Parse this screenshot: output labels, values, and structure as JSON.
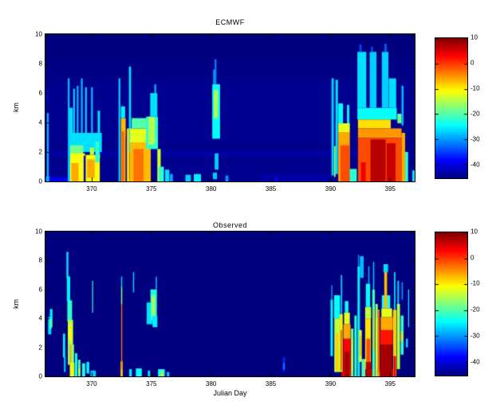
{
  "figure_title": "",
  "accent_colors": {
    "axis": "#000000",
    "background": "#ffffff",
    "plot_min_blue": "#000080"
  },
  "chart_data": [
    {
      "type": "heatmap",
      "title": "ECMWF",
      "xlabel": "",
      "ylabel": "km",
      "xlim": [
        366.13,
        397.05
      ],
      "ylim": [
        0,
        10
      ],
      "xticks": [
        370,
        375,
        380,
        385,
        390,
        395
      ],
      "yticks": [
        0,
        2,
        4,
        6,
        8,
        10
      ],
      "colormap": "jet",
      "clim": [
        -45,
        10
      ],
      "colorbar_ticks": [
        10,
        0,
        -10,
        -20,
        -30,
        -40
      ],
      "background_value": -45,
      "cells_format": [
        "day_start",
        "day_end",
        "km_bottom",
        "km_top",
        "value_dBZ"
      ],
      "cells": [
        [
          366.13,
          397.05,
          0,
          8.3,
          -44.6
        ],
        [
          366.13,
          397.05,
          0,
          6.8,
          -44.2
        ],
        [
          366.13,
          397.05,
          1.78,
          2.02,
          -42.8
        ],
        [
          384.0,
          390.1,
          0,
          0.5,
          -43.0
        ],
        [
          366.13,
          368.05,
          0,
          0.3,
          -39
        ],
        [
          366.17,
          366.45,
          0,
          0.35,
          -30
        ],
        [
          366.25,
          366.4,
          0,
          4.65,
          -28
        ],
        [
          366.25,
          366.4,
          5.5,
          6.2,
          -40
        ],
        [
          385.35,
          385.55,
          0,
          0.3,
          -38
        ],
        [
          368.0,
          368.15,
          0,
          7.0,
          -28
        ],
        [
          368.12,
          368.42,
          0,
          5.0,
          -26
        ],
        [
          368.45,
          368.6,
          2.2,
          6.3,
          -27
        ],
        [
          368.75,
          368.9,
          2.5,
          6.5,
          -28
        ],
        [
          369.1,
          369.25,
          3.0,
          7.0,
          -28
        ],
        [
          369.45,
          369.6,
          2.5,
          6.4,
          -27
        ],
        [
          369.95,
          370.1,
          3.3,
          6.4,
          -28
        ],
        [
          370.5,
          370.7,
          1.6,
          4.8,
          -26
        ],
        [
          368.15,
          370.85,
          2.0,
          3.3,
          -26
        ],
        [
          368.2,
          369.3,
          1.85,
          2.45,
          -18
        ],
        [
          368.2,
          369.45,
          0,
          1.9,
          -11
        ],
        [
          368.3,
          368.9,
          0,
          1.25,
          -6
        ],
        [
          369.33,
          369.5,
          0,
          1.75,
          -40
        ],
        [
          369.5,
          370.68,
          0,
          1.8,
          -11
        ],
        [
          369.62,
          370.25,
          0.25,
          1.5,
          -6
        ],
        [
          369.85,
          370.2,
          1.8,
          2.3,
          -14
        ],
        [
          370.3,
          370.62,
          1.3,
          2.7,
          -22
        ],
        [
          372.25,
          372.4,
          0,
          7.0,
          -27
        ],
        [
          372.45,
          372.85,
          0,
          4.3,
          -7
        ],
        [
          372.52,
          372.72,
          0,
          3.4,
          -2
        ],
        [
          372.45,
          372.8,
          4.3,
          5.1,
          -25
        ],
        [
          372.85,
          372.95,
          0,
          3.0,
          -40
        ],
        [
          372.95,
          373.18,
          0,
          3.6,
          -9
        ],
        [
          373.12,
          373.3,
          2.0,
          7.8,
          -26
        ],
        [
          373.2,
          374.95,
          0,
          2.65,
          -7
        ],
        [
          373.5,
          374.35,
          0,
          2.2,
          -3
        ],
        [
          373.2,
          374.95,
          2.65,
          3.6,
          -12
        ],
        [
          373.35,
          374.8,
          3.6,
          4.3,
          -20
        ],
        [
          374.55,
          375.55,
          2.2,
          4.4,
          -22
        ],
        [
          374.75,
          375.3,
          2.5,
          4.4,
          -15
        ],
        [
          374.9,
          375.5,
          4.4,
          6.0,
          -26
        ],
        [
          375.25,
          375.4,
          6.0,
          6.6,
          -28
        ],
        [
          375.5,
          375.78,
          0,
          2.2,
          -13
        ],
        [
          375.62,
          376.05,
          0,
          1.0,
          -22
        ],
        [
          376.15,
          376.5,
          0,
          0.8,
          -26
        ],
        [
          376.55,
          376.8,
          0,
          0.5,
          -29
        ],
        [
          377.85,
          378.3,
          0,
          0.45,
          -27
        ],
        [
          378.55,
          379.15,
          0,
          0.5,
          -25
        ],
        [
          380.1,
          380.75,
          2.9,
          6.6,
          -24
        ],
        [
          380.22,
          380.58,
          4.3,
          6.2,
          -15
        ],
        [
          380.3,
          380.45,
          6.6,
          8.3,
          -31
        ],
        [
          380.18,
          380.32,
          6.6,
          7.6,
          -29
        ],
        [
          380.3,
          380.62,
          0.8,
          1.9,
          -27
        ],
        [
          380.15,
          380.5,
          0.15,
          0.6,
          -27
        ],
        [
          381.2,
          381.45,
          0,
          0.4,
          -30
        ],
        [
          390.08,
          390.28,
          0.4,
          7.0,
          -27
        ],
        [
          390.42,
          390.62,
          0.5,
          6.9,
          -26
        ],
        [
          390.3,
          390.42,
          0.3,
          2.4,
          -16
        ],
        [
          390.65,
          391.62,
          0,
          3.35,
          -6
        ],
        [
          390.82,
          391.58,
          0,
          2.45,
          -1
        ],
        [
          390.65,
          391.62,
          3.35,
          3.95,
          -12
        ],
        [
          390.65,
          391.05,
          3.95,
          5.3,
          -24
        ],
        [
          391.38,
          391.58,
          3.95,
          5.2,
          -25
        ],
        [
          391.62,
          392.2,
          0,
          0.85,
          -22
        ],
        [
          392.25,
          395.55,
          4.2,
          5.0,
          -24
        ],
        [
          392.25,
          393.0,
          5.0,
          8.8,
          -26
        ],
        [
          392.42,
          392.6,
          8.8,
          9.3,
          -34
        ],
        [
          393.28,
          393.85,
          5.0,
          8.8,
          -27
        ],
        [
          393.4,
          393.56,
          8.8,
          9.15,
          -34
        ],
        [
          394.3,
          394.85,
          5.0,
          8.8,
          -27
        ],
        [
          394.52,
          394.7,
          8.8,
          9.35,
          -33
        ],
        [
          392.3,
          395.05,
          3.6,
          4.2,
          -9
        ],
        [
          392.3,
          395.95,
          2.95,
          3.6,
          -5
        ],
        [
          392.3,
          395.95,
          0,
          2.95,
          -1
        ],
        [
          393.35,
          394.62,
          0,
          2.85,
          7
        ],
        [
          394.7,
          395.45,
          0,
          2.6,
          6
        ],
        [
          392.55,
          392.95,
          0,
          1.3,
          4
        ],
        [
          394.88,
          395.5,
          5.0,
          7.0,
          -26
        ],
        [
          395.6,
          395.95,
          3.95,
          4.6,
          -18
        ],
        [
          395.95,
          396.12,
          3.8,
          6.5,
          -28
        ],
        [
          395.95,
          396.25,
          0,
          3.3,
          -6
        ],
        [
          396.25,
          396.5,
          0,
          2.0,
          -22
        ],
        [
          396.85,
          397.05,
          0,
          0.75,
          -26
        ]
      ]
    },
    {
      "type": "heatmap",
      "title": "Observed",
      "xlabel": "Julian Day",
      "ylabel": "km",
      "xlim": [
        366.13,
        397.05
      ],
      "ylim": [
        0,
        10
      ],
      "xticks": [
        370,
        375,
        380,
        385,
        390,
        395
      ],
      "yticks": [
        0,
        2,
        4,
        6,
        8,
        10
      ],
      "colormap": "jet",
      "clim": [
        -45,
        10
      ],
      "colorbar_ticks": [
        10,
        0,
        -10,
        -20,
        -30,
        -40
      ],
      "background_value": -45,
      "cells_format": [
        "day_start",
        "day_end",
        "km_bottom",
        "km_top",
        "value_dBZ"
      ],
      "cells": [
        [
          366.35,
          366.62,
          2.9,
          4.1,
          -26
        ],
        [
          366.5,
          366.72,
          3.4,
          4.65,
          -25
        ],
        [
          366.5,
          366.65,
          3.3,
          3.95,
          -18
        ],
        [
          367.6,
          367.78,
          1.3,
          2.95,
          -25
        ],
        [
          367.68,
          367.82,
          0.3,
          1.4,
          -27
        ],
        [
          367.88,
          368.06,
          6.8,
          8.6,
          -27
        ],
        [
          367.92,
          368.2,
          5.2,
          6.9,
          -25
        ],
        [
          367.96,
          368.36,
          3.8,
          5.25,
          -22
        ],
        [
          368.0,
          368.44,
          2.2,
          3.9,
          -14
        ],
        [
          368.06,
          368.3,
          2.55,
          3.5,
          -11
        ],
        [
          368.0,
          368.52,
          0.8,
          2.2,
          -17
        ],
        [
          368.16,
          368.3,
          0,
          2.2,
          -6
        ],
        [
          368.2,
          368.56,
          0,
          0.95,
          -12
        ],
        [
          368.6,
          368.8,
          0,
          1.6,
          -24
        ],
        [
          368.86,
          369.06,
          0,
          1.15,
          -20
        ],
        [
          368.9,
          369.02,
          0.15,
          0.55,
          -12
        ],
        [
          369.2,
          369.46,
          0,
          0.9,
          -23
        ],
        [
          369.56,
          369.8,
          0.2,
          1.0,
          -25
        ],
        [
          369.9,
          370.35,
          0,
          0.4,
          -27
        ],
        [
          370.04,
          370.12,
          4.4,
          6.6,
          -22
        ],
        [
          372.42,
          372.6,
          0,
          1.05,
          -8
        ],
        [
          372.47,
          372.56,
          0.5,
          5.0,
          -3
        ],
        [
          372.46,
          372.56,
          5.0,
          6.2,
          -17
        ],
        [
          372.46,
          372.56,
          6.2,
          6.9,
          -27
        ],
        [
          373.15,
          373.36,
          0,
          0.5,
          -25
        ],
        [
          373.46,
          373.56,
          5.8,
          7.2,
          -27
        ],
        [
          373.7,
          374.2,
          0,
          0.55,
          -24
        ],
        [
          374.7,
          374.9,
          0,
          0.4,
          -26
        ],
        [
          374.6,
          375.12,
          3.6,
          5.1,
          -26
        ],
        [
          374.92,
          375.46,
          3.9,
          6.0,
          -23
        ],
        [
          375.0,
          375.32,
          4.2,
          5.6,
          -16
        ],
        [
          375.1,
          375.5,
          3.4,
          4.15,
          -25
        ],
        [
          375.36,
          375.46,
          6.0,
          6.9,
          -28
        ],
        [
          375.56,
          376.12,
          0,
          0.5,
          -23
        ],
        [
          375.8,
          375.96,
          0,
          0.35,
          -13
        ],
        [
          376.3,
          376.5,
          0,
          0.3,
          -27
        ],
        [
          386.0,
          386.2,
          0.35,
          1.3,
          -36
        ],
        [
          386.05,
          386.15,
          0.5,
          0.9,
          -30
        ],
        [
          390.0,
          390.2,
          1.4,
          5.3,
          -25
        ],
        [
          390.06,
          390.16,
          5.3,
          6.3,
          -30
        ],
        [
          390.32,
          390.78,
          0.3,
          4.0,
          -14
        ],
        [
          390.44,
          390.66,
          0.4,
          3.0,
          -8
        ],
        [
          390.3,
          390.8,
          4.0,
          5.6,
          -24
        ],
        [
          390.86,
          390.98,
          4.3,
          7.0,
          -27
        ],
        [
          390.78,
          391.02,
          0.3,
          4.3,
          -10
        ],
        [
          390.84,
          390.96,
          0.4,
          3.2,
          -2
        ],
        [
          390.9,
          391.7,
          0,
          0.3,
          5
        ],
        [
          391.08,
          391.68,
          0,
          2.6,
          3
        ],
        [
          391.18,
          391.58,
          0,
          1.7,
          8
        ],
        [
          391.08,
          391.68,
          2.6,
          3.6,
          -6
        ],
        [
          391.14,
          391.62,
          3.6,
          4.4,
          -12
        ],
        [
          391.2,
          391.5,
          4.4,
          5.2,
          -24
        ],
        [
          391.72,
          391.92,
          0,
          3.3,
          -18
        ],
        [
          391.76,
          391.86,
          0.3,
          2.6,
          -12
        ],
        [
          392.0,
          392.2,
          0,
          4.2,
          -22
        ],
        [
          392.26,
          392.46,
          0,
          7.6,
          -25
        ],
        [
          392.3,
          392.4,
          7.6,
          8.4,
          -31
        ],
        [
          392.46,
          392.78,
          6.8,
          8.3,
          -28
        ],
        [
          392.4,
          392.62,
          1.0,
          3.2,
          -12
        ],
        [
          392.45,
          392.56,
          1.4,
          2.8,
          -7
        ],
        [
          392.6,
          392.92,
          0,
          1.2,
          -20
        ],
        [
          392.9,
          393.4,
          4.0,
          4.8,
          -14
        ],
        [
          392.9,
          393.38,
          0.5,
          4.0,
          -9
        ],
        [
          393.0,
          393.32,
          0.6,
          2.6,
          -1
        ],
        [
          392.95,
          395.3,
          0,
          0.5,
          8
        ],
        [
          392.96,
          393.42,
          0,
          1.0,
          7
        ],
        [
          392.96,
          393.32,
          4.8,
          6.4,
          -24
        ],
        [
          393.16,
          393.26,
          6.4,
          7.6,
          -28
        ],
        [
          393.5,
          393.72,
          0,
          6.0,
          -21
        ],
        [
          393.56,
          393.66,
          1.8,
          4.6,
          -7
        ],
        [
          393.56,
          393.66,
          6.0,
          7.9,
          -27
        ],
        [
          393.76,
          393.96,
          0,
          5.0,
          -16
        ],
        [
          393.8,
          393.92,
          0.5,
          4.0,
          -11
        ],
        [
          393.98,
          394.12,
          0,
          4.6,
          -5
        ],
        [
          394.02,
          394.1,
          0.3,
          4.5,
          0
        ],
        [
          394.16,
          395.2,
          2.2,
          3.2,
          2
        ],
        [
          394.16,
          395.16,
          0,
          2.2,
          8
        ],
        [
          394.2,
          395.22,
          3.2,
          4.1,
          -6
        ],
        [
          394.26,
          395.16,
          4.1,
          4.7,
          -12
        ],
        [
          394.3,
          395.0,
          4.7,
          5.6,
          -23
        ],
        [
          394.5,
          394.74,
          4.7,
          7.2,
          -7
        ],
        [
          394.44,
          394.82,
          7.2,
          7.75,
          -26
        ],
        [
          395.24,
          395.52,
          0,
          4.6,
          -8
        ],
        [
          395.28,
          395.48,
          0,
          1.4,
          4
        ],
        [
          395.32,
          395.44,
          4.6,
          7.2,
          -26
        ],
        [
          395.56,
          395.82,
          0.5,
          5.0,
          -15
        ],
        [
          395.6,
          395.74,
          5.0,
          6.6,
          -27
        ],
        [
          395.88,
          396.12,
          1.5,
          4.2,
          -22
        ],
        [
          395.9,
          396.06,
          2.4,
          3.1,
          -9
        ],
        [
          395.96,
          396.06,
          5.3,
          6.5,
          -29
        ],
        [
          396.32,
          396.48,
          2.0,
          2.6,
          -26
        ],
        [
          396.5,
          396.58,
          3.4,
          6.0,
          -25
        ]
      ]
    }
  ],
  "layout_note": "top panel plot area x 57-520 y 43-228; bottom panel y 291-473; jet colorbars right of each panel"
}
